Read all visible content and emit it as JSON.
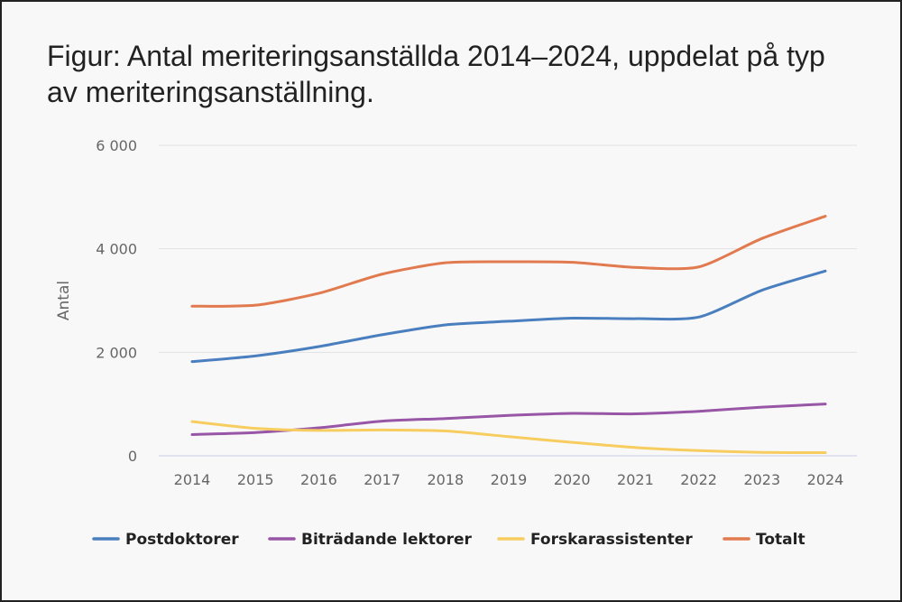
{
  "chart_data": {
    "type": "line",
    "title": "Figur: Antal meriteringsanställda 2014–2024, uppdelat på typ av meriteringsanställning.",
    "xlabel": "",
    "ylabel": "Antal",
    "categories": [
      "2014",
      "2015",
      "2016",
      "2017",
      "2018",
      "2019",
      "2020",
      "2021",
      "2022",
      "2023",
      "2024"
    ],
    "ylim": [
      0,
      6000
    ],
    "yticks": [
      0,
      2000,
      4000,
      6000
    ],
    "ytick_labels": [
      "0",
      "2 000",
      "4 000",
      "6 000"
    ],
    "grid": true,
    "legend_position": "bottom",
    "series": [
      {
        "name": "Postdoktorer",
        "color": "#4a7fbf",
        "values": [
          1820,
          1930,
          2110,
          2340,
          2530,
          2600,
          2660,
          2650,
          2680,
          3200,
          3570
        ]
      },
      {
        "name": "Biträdande lektorer",
        "color": "#9856a6",
        "values": [
          410,
          450,
          540,
          670,
          720,
          780,
          820,
          810,
          860,
          940,
          1000
        ]
      },
      {
        "name": "Forskarassistenter",
        "color": "#f7cd60",
        "values": [
          660,
          530,
          490,
          500,
          480,
          370,
          260,
          160,
          100,
          65,
          60
        ]
      },
      {
        "name": "Totalt",
        "color": "#e27a4f",
        "values": [
          2890,
          2910,
          3140,
          3510,
          3730,
          3750,
          3740,
          3640,
          3650,
          4200,
          4630
        ]
      }
    ]
  }
}
